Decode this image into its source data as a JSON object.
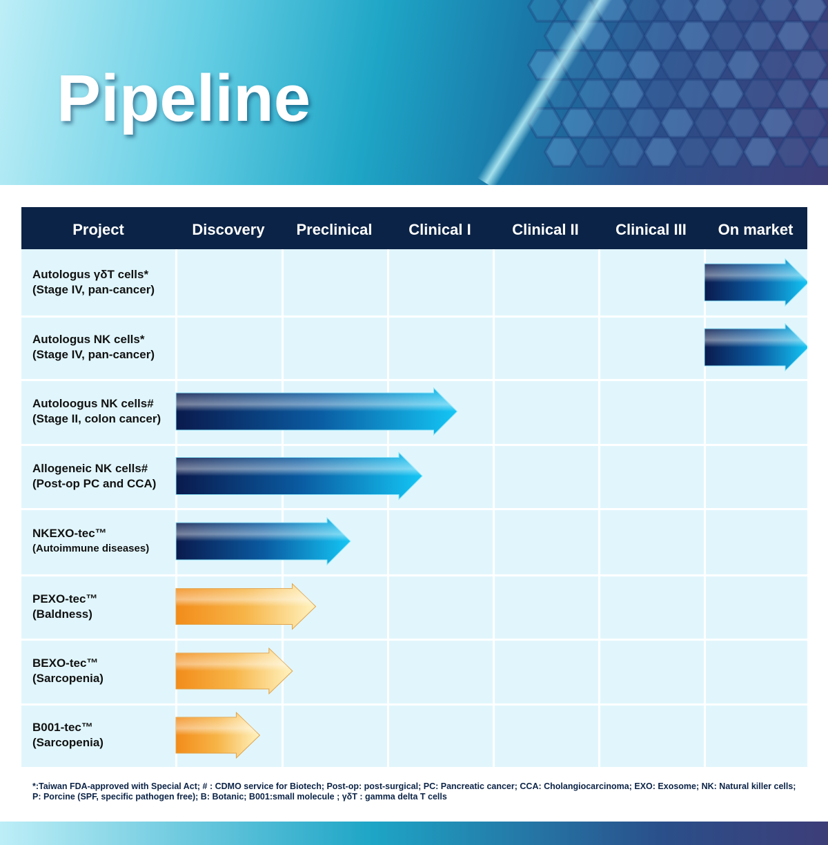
{
  "title": "Pipeline",
  "columns": [
    "Project",
    "Discovery",
    "Preclinical",
    "Clinical I",
    "Clinical II",
    "Clinical III",
    "On market"
  ],
  "projects": [
    {
      "name": "Autologus γδT cells*",
      "detail": "(Stage IV, pan-cancer)",
      "start": 5.0,
      "end": 6.0,
      "color": "blue"
    },
    {
      "name": "Autologus NK cells*",
      "detail": "(Stage IV, pan-cancer)",
      "start": 5.0,
      "end": 6.0,
      "color": "blue"
    },
    {
      "name": "Autoloogus NK cells#",
      "detail": "(Stage II, colon cancer)",
      "start": 0,
      "end": 2.67,
      "color": "blue"
    },
    {
      "name": "Allogeneic  NK cells#",
      "detail": "(Post-op PC and CCA)",
      "start": 0,
      "end": 2.34,
      "color": "blue"
    },
    {
      "name": "NKEXO-tec™",
      "detail": "(Autoimmune diseases)",
      "start": 0,
      "end": 1.66,
      "color": "blue"
    },
    {
      "name": "PEXO-tec™",
      "detail": "(Baldness)",
      "start": 0,
      "end": 1.33,
      "color": "orange"
    },
    {
      "name": "BEXO-tec™",
      "detail": "(Sarcopenia)",
      "start": 0,
      "end": 1.11,
      "color": "orange"
    },
    {
      "name": "B001-tec™",
      "detail": "(Sarcopenia)",
      "start": 0,
      "end": 0.8,
      "color": "orange"
    }
  ],
  "footnote": [
    "*:Taiwan FDA-approved with Special Act; # : CDMO service for Biotech; Post-op: post-surgical; PC: Pancreatic cancer; CCA: Cholangiocarcinoma; EXO: Exosome; NK: Natural killer cells;",
    "P: Porcine (SPF, specific pathogen free); B: Botanic; B001:small molecule ; γδT : gamma delta T cells"
  ],
  "colors": {
    "header": "#0b2346",
    "cell": "#e1f6fc",
    "blue_dark": "#0a1a4d",
    "blue_light": "#14c6f5",
    "orange_dark": "#f28c1a",
    "orange_light": "#fff3c0"
  }
}
